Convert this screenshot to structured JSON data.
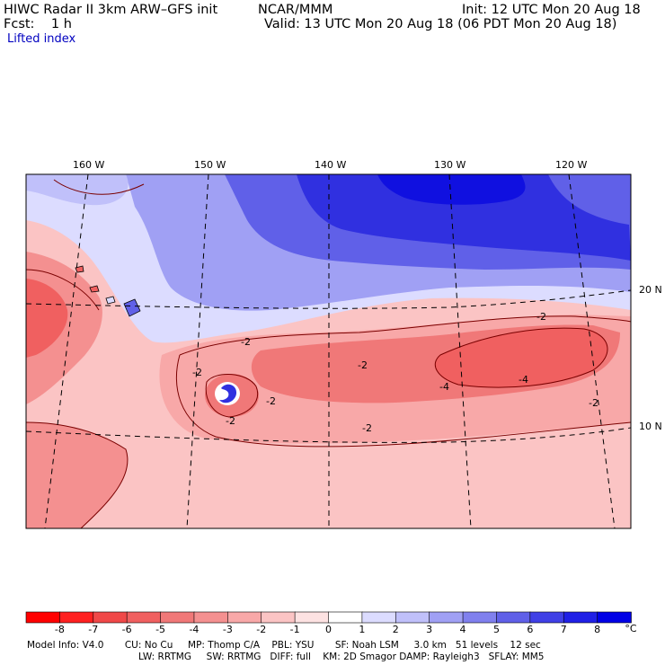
{
  "header": {
    "model": "HIWC Radar II 3km ARW–GFS init",
    "org": "NCAR/MMM",
    "init": "Init: 12 UTC Mon 20 Aug 18",
    "fcst": "Fcst:    1 h",
    "valid": "Valid: 13 UTC Mon 20 Aug 18 (06 PDT Mon 20 Aug 18)",
    "field": "Lifted index"
  },
  "map": {
    "longitudes": [
      "160 W",
      "150 W",
      "140 W",
      "130 W",
      "120 W"
    ],
    "latitudes": [
      "20 N",
      "10 N"
    ],
    "contour_labels": [
      "-2",
      "-2",
      "-2",
      "-2",
      "-2",
      "-2",
      "-2",
      "-4",
      "-4",
      "-2"
    ]
  },
  "colorbar": {
    "ticks": [
      "-8",
      "-7",
      "-6",
      "-5",
      "-4",
      "-3",
      "-2",
      "-1",
      "0",
      "1",
      "2",
      "3",
      "4",
      "5",
      "6",
      "7",
      "8"
    ],
    "unit": "°C",
    "colors": [
      "#ff0000",
      "#ff2020",
      "#f04848",
      "#f06060",
      "#f07878",
      "#f49090",
      "#f8a8a8",
      "#fbc4c4",
      "#fde2e2",
      "#ffffff",
      "#dcdcff",
      "#c0c0fa",
      "#a0a0f4",
      "#8080ee",
      "#6060e8",
      "#4040e6",
      "#2020e6",
      "#0000e6"
    ]
  },
  "model_info": {
    "line1": "Model Info: V4.0       CU: No Cu     MP: Thomp C/A    PBL: YSU       SF: Noah LSM     3.0 km   51 levels    12 sec",
    "line2": "LW: RRTMG     SW: RRTMG   DIFF: full    KM: 2D Smagor DAMP: Rayleigh3   SFLAY: MM5"
  },
  "colors": {
    "stable_blue": "#3030e0",
    "unstable_red": "#f06868",
    "neutral": "#ffffff"
  }
}
